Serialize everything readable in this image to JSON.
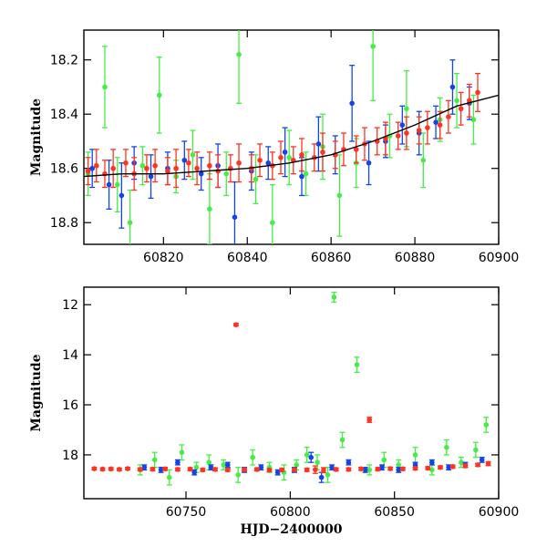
{
  "colors": {
    "green": "#44ee44",
    "blue": "#1144ee",
    "red": "#ff3322",
    "model": "#000000"
  },
  "chart_data": [
    {
      "type": "scatter",
      "xlabel": "",
      "ylabel": "Magnitude",
      "xlim": [
        60801,
        60900
      ],
      "ylim": [
        18.88,
        18.09
      ],
      "inverted_y": true,
      "xticks": [
        60820,
        60840,
        60860,
        60880,
        60900
      ],
      "yticks": [
        18.2,
        18.4,
        18.6,
        18.8
      ],
      "xtick_labels": [
        "60820",
        "60840",
        "60860",
        "60880",
        "60900"
      ],
      "ytick_labels": [
        "18.2",
        "18.4",
        "18.6",
        "18.8"
      ],
      "model_curve": {
        "x": [
          60801,
          60810,
          60820,
          60830,
          60840,
          60850,
          60860,
          60870,
          60880,
          60890,
          60900
        ],
        "y": [
          18.63,
          18.62,
          18.62,
          18.61,
          18.6,
          18.58,
          18.55,
          18.5,
          18.44,
          18.37,
          18.33
        ]
      },
      "series": [
        {
          "color": "green",
          "x": [
            60802,
            60806,
            60809,
            60812,
            60815,
            60819,
            60823,
            60827,
            60831,
            60835,
            60838,
            60842,
            60846,
            60850,
            60854,
            60858,
            60862,
            60866,
            60870,
            60874,
            60878,
            60882,
            60886,
            60890,
            60894
          ],
          "y": [
            18.62,
            18.3,
            18.66,
            18.8,
            18.59,
            18.33,
            18.63,
            18.55,
            18.75,
            18.62,
            18.18,
            18.64,
            18.8,
            18.56,
            18.62,
            18.52,
            18.7,
            18.58,
            18.15,
            18.48,
            18.38,
            18.57,
            18.42,
            18.35,
            18.42
          ],
          "err": [
            0.08,
            0.15,
            0.1,
            0.12,
            0.07,
            0.14,
            0.06,
            0.09,
            0.13,
            0.08,
            0.18,
            0.09,
            0.14,
            0.1,
            0.08,
            0.12,
            0.15,
            0.09,
            0.2,
            0.08,
            0.14,
            0.1,
            0.08,
            0.1,
            0.09
          ]
        },
        {
          "color": "blue",
          "x": [
            60803,
            60807,
            60810,
            60813,
            60817,
            60821,
            60825,
            60829,
            60833,
            60837,
            60841,
            60845,
            60849,
            60853,
            60857,
            60861,
            60865,
            60869,
            60873,
            60877,
            60881,
            60885,
            60889,
            60893
          ],
          "y": [
            18.6,
            18.66,
            18.7,
            18.58,
            18.63,
            18.6,
            18.57,
            18.62,
            18.59,
            18.78,
            18.61,
            18.58,
            18.54,
            18.63,
            18.51,
            18.55,
            18.36,
            18.58,
            18.5,
            18.44,
            18.47,
            18.43,
            18.3,
            18.36
          ],
          "err": [
            0.07,
            0.09,
            0.12,
            0.06,
            0.08,
            0.06,
            0.07,
            0.06,
            0.08,
            0.13,
            0.07,
            0.06,
            0.09,
            0.07,
            0.1,
            0.07,
            0.14,
            0.08,
            0.06,
            0.07,
            0.08,
            0.06,
            0.1,
            0.06
          ]
        },
        {
          "color": "red",
          "x": [
            60802,
            60804,
            60806,
            60808,
            60811,
            60813,
            60816,
            60818,
            60821,
            60823,
            60826,
            60828,
            60831,
            60833,
            60836,
            60838,
            60841,
            60843,
            60846,
            60848,
            60851,
            60853,
            60856,
            60858,
            60861,
            60863,
            60866,
            60868,
            60871,
            60873,
            60876,
            60878,
            60881,
            60883,
            60886,
            60888,
            60891,
            60893,
            60895
          ],
          "y": [
            18.61,
            18.59,
            18.62,
            18.6,
            18.58,
            18.62,
            18.6,
            18.59,
            18.61,
            18.6,
            18.58,
            18.6,
            18.59,
            18.61,
            18.6,
            18.58,
            18.6,
            18.57,
            18.59,
            18.56,
            18.57,
            18.55,
            18.56,
            18.54,
            18.55,
            18.53,
            18.53,
            18.51,
            18.5,
            18.49,
            18.48,
            18.47,
            18.46,
            18.45,
            18.44,
            18.41,
            18.38,
            18.35,
            18.32
          ],
          "err": [
            0.05,
            0.06,
            0.05,
            0.07,
            0.05,
            0.06,
            0.05,
            0.06,
            0.05,
            0.07,
            0.05,
            0.06,
            0.05,
            0.06,
            0.05,
            0.07,
            0.05,
            0.06,
            0.05,
            0.06,
            0.05,
            0.06,
            0.05,
            0.07,
            0.05,
            0.06,
            0.05,
            0.06,
            0.05,
            0.06,
            0.05,
            0.06,
            0.05,
            0.06,
            0.05,
            0.06,
            0.06,
            0.06,
            0.07
          ]
        }
      ]
    },
    {
      "type": "scatter",
      "xlabel": "HJD−2400000",
      "ylabel": "Magnitude",
      "xlim": [
        60701,
        60900
      ],
      "ylim": [
        19.75,
        11.3
      ],
      "inverted_y": true,
      "xticks": [
        60750,
        60800,
        60850,
        60900
      ],
      "yticks": [
        12,
        14,
        16,
        18
      ],
      "xtick_labels": [
        "60750",
        "60800",
        "60850",
        "60900"
      ],
      "ytick_labels": [
        "12",
        "14",
        "16",
        "18"
      ],
      "series": [
        {
          "color": "green",
          "x": [
            60728,
            60735,
            60742,
            60748,
            60755,
            60761,
            60768,
            60775,
            60782,
            60790,
            60797,
            60803,
            60808,
            60813,
            60818,
            60821,
            60825,
            60832,
            60838,
            60845,
            60852,
            60860,
            60868,
            60875,
            60882,
            60889,
            60894
          ],
          "y": [
            18.6,
            18.2,
            18.9,
            17.9,
            18.5,
            18.3,
            18.4,
            18.8,
            18.1,
            18.5,
            18.7,
            18.4,
            18.0,
            18.3,
            18.8,
            11.7,
            17.4,
            14.4,
            18.6,
            18.2,
            18.4,
            18.0,
            18.6,
            17.7,
            18.3,
            17.8,
            16.8
          ],
          "err": [
            0.2,
            0.3,
            0.3,
            0.3,
            0.2,
            0.3,
            0.2,
            0.3,
            0.3,
            0.2,
            0.3,
            0.2,
            0.3,
            0.3,
            0.3,
            0.2,
            0.3,
            0.3,
            0.2,
            0.3,
            0.2,
            0.3,
            0.2,
            0.3,
            0.2,
            0.3,
            0.3
          ]
        },
        {
          "color": "blue",
          "x": [
            60730,
            60738,
            60746,
            60754,
            60762,
            60770,
            60778,
            60786,
            60794,
            60802,
            60810,
            60815,
            60820,
            60828,
            60836,
            60844,
            60852,
            60860,
            60868,
            60876,
            60884,
            60892
          ],
          "y": [
            18.5,
            18.6,
            18.3,
            18.7,
            18.5,
            18.4,
            18.6,
            18.5,
            18.7,
            18.6,
            18.1,
            18.9,
            18.5,
            18.3,
            18.6,
            18.5,
            18.6,
            18.4,
            18.3,
            18.5,
            18.4,
            18.2
          ],
          "err": [
            0.1,
            0.1,
            0.1,
            0.1,
            0.1,
            0.1,
            0.1,
            0.1,
            0.1,
            0.1,
            0.2,
            0.2,
            0.1,
            0.1,
            0.1,
            0.1,
            0.1,
            0.1,
            0.1,
            0.1,
            0.1,
            0.1
          ]
        },
        {
          "color": "red",
          "x": [
            60706,
            60710,
            60714,
            60718,
            60722,
            60728,
            60734,
            60740,
            60746,
            60752,
            60758,
            60764,
            60770,
            60774,
            60778,
            60784,
            60790,
            60796,
            60802,
            60808,
            60812,
            60816,
            60822,
            60828,
            60834,
            60838,
            60842,
            60848,
            60854,
            60860,
            60866,
            60872,
            60878,
            60884,
            60890,
            60895
          ],
          "y": [
            18.55,
            18.57,
            18.56,
            18.58,
            18.55,
            18.58,
            18.57,
            18.56,
            18.58,
            18.57,
            18.6,
            18.58,
            18.6,
            12.8,
            18.59,
            18.58,
            18.61,
            18.6,
            18.59,
            18.6,
            18.59,
            18.61,
            18.58,
            18.58,
            18.56,
            16.6,
            18.57,
            18.55,
            18.56,
            18.54,
            18.53,
            18.5,
            18.47,
            18.44,
            18.4,
            18.35
          ],
          "err": [
            0.05,
            0.05,
            0.05,
            0.05,
            0.05,
            0.06,
            0.06,
            0.06,
            0.06,
            0.06,
            0.06,
            0.06,
            0.06,
            0.05,
            0.06,
            0.06,
            0.06,
            0.06,
            0.06,
            0.06,
            0.15,
            0.1,
            0.06,
            0.06,
            0.06,
            0.1,
            0.06,
            0.06,
            0.06,
            0.06,
            0.06,
            0.06,
            0.06,
            0.06,
            0.06,
            0.08
          ]
        }
      ]
    }
  ]
}
